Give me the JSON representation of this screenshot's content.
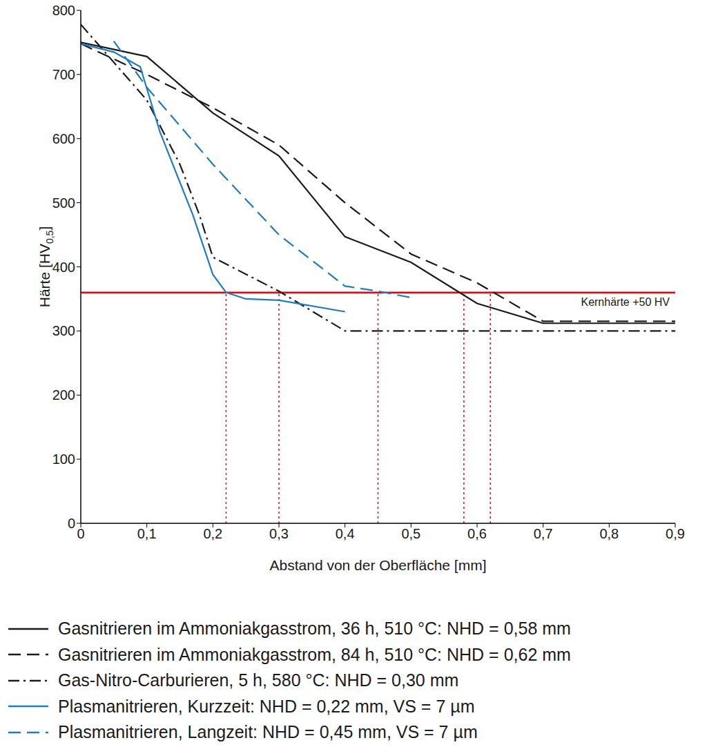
{
  "chart_data": {
    "type": "line",
    "xlabel": "Abstand von der Oberfläche [mm]",
    "ylabel": {
      "text": "Härte [HV",
      "sub": "0,5",
      "end": "]"
    },
    "xlim": [
      0,
      0.9
    ],
    "xticks": [
      0,
      {
        "value": 0.1,
        "label": "0,1"
      },
      {
        "value": 0.2,
        "label": "0,2"
      },
      {
        "value": 0.3,
        "label": "0,3"
      },
      {
        "value": 0.4,
        "label": "0,4"
      },
      {
        "value": 0.5,
        "label": "0,5"
      },
      {
        "value": 0.6,
        "label": "0,6"
      },
      {
        "value": 0.7,
        "label": "0,7"
      },
      {
        "value": 0.8,
        "label": "0,8"
      },
      {
        "value": 0.9,
        "label": "0,9"
      }
    ],
    "ylim": [
      0,
      800
    ],
    "yticks": [
      0,
      100,
      200,
      300,
      400,
      500,
      600,
      700,
      800
    ],
    "grid": true,
    "legend": "bottom",
    "reference_line": {
      "y": 360,
      "label": "Kernhärte +50 HV",
      "color": "#e30613"
    },
    "nhd_markers": {
      "x": [
        0.22,
        0.3,
        0.45,
        0.58,
        0.62
      ],
      "color": "#e30613",
      "line_style": "dotted"
    },
    "series": [
      {
        "name": "Gasnitrieren im Ammoniakgasstrom, 36 h, 510 °C: NHD = 0,58 mm",
        "color": "#1a1a1a",
        "line_style": "solid",
        "x": [
          0,
          0.1,
          0.2,
          0.3,
          0.4,
          0.5,
          0.6,
          0.7,
          0.9
        ],
        "values": [
          750,
          728,
          640,
          573,
          447,
          407,
          343,
          312,
          312
        ]
      },
      {
        "name": "Gasnitrieren im Ammoniakgasstrom, 84 h, 510 °C: NHD = 0,62 mm",
        "color": "#1a1a1a",
        "line_style": "dashed",
        "x": [
          0,
          0.1,
          0.2,
          0.3,
          0.4,
          0.5,
          0.6,
          0.7,
          0.9
        ],
        "values": [
          748,
          700,
          648,
          590,
          500,
          420,
          375,
          315,
          315
        ]
      },
      {
        "name": "Gas-Nitro-Carburieren, 5 h, 580 °C: NHD = 0,30 mm",
        "color": "#1a1a1a",
        "line_style": "dashdot",
        "x": [
          0,
          0.1,
          0.15,
          0.18,
          0.2,
          0.3,
          0.4,
          0.9
        ],
        "values": [
          778,
          660,
          560,
          480,
          415,
          362,
          300,
          300
        ]
      },
      {
        "name": "Plasmanitrieren, Kurzzeit: NHD = 0,22 mm, VS = 7 µm",
        "color": "#1f7bbf",
        "line_style": "solid",
        "x": [
          0,
          0.05,
          0.09,
          0.12,
          0.17,
          0.2,
          0.22,
          0.25,
          0.3,
          0.4
        ],
        "values": [
          748,
          735,
          712,
          610,
          480,
          388,
          360,
          350,
          348,
          330
        ]
      },
      {
        "name": "Plasmanitrieren, Langzeit: NHD = 0,45 mm, VS = 7 µm",
        "color": "#1f7bbf",
        "line_style": "dashed",
        "x": [
          0.05,
          0.1,
          0.2,
          0.3,
          0.4,
          0.45,
          0.5
        ],
        "values": [
          752,
          680,
          560,
          450,
          370,
          362,
          352
        ]
      }
    ]
  }
}
